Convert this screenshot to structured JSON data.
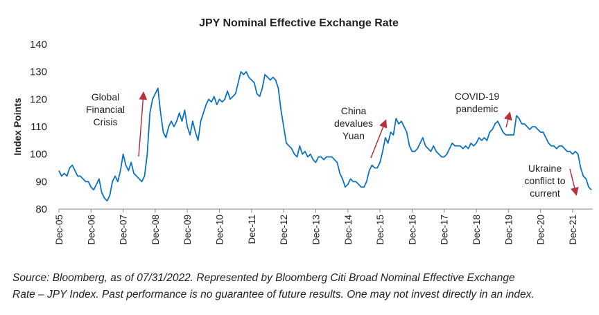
{
  "chart_data": {
    "type": "line",
    "title": "JPY Nominal Effective Exchange Rate",
    "y_label": "Index Points",
    "x": [
      "Dec-05",
      "Jan-06",
      "Feb-06",
      "Mar-06",
      "Apr-06",
      "May-06",
      "Jun-06",
      "Jul-06",
      "Aug-06",
      "Sep-06",
      "Oct-06",
      "Nov-06",
      "Dec-06",
      "Jan-07",
      "Feb-07",
      "Mar-07",
      "Apr-07",
      "May-07",
      "Jun-07",
      "Jul-07",
      "Aug-07",
      "Sep-07",
      "Oct-07",
      "Nov-07",
      "Dec-07",
      "Jan-08",
      "Feb-08",
      "Mar-08",
      "Apr-08",
      "May-08",
      "Jun-08",
      "Jul-08",
      "Aug-08",
      "Sep-08",
      "Oct-08",
      "Nov-08",
      "Dec-08",
      "Jan-09",
      "Feb-09",
      "Mar-09",
      "Apr-09",
      "May-09",
      "Jun-09",
      "Jul-09",
      "Aug-09",
      "Sep-09",
      "Oct-09",
      "Nov-09",
      "Dec-09",
      "Jan-10",
      "Feb-10",
      "Mar-10",
      "Apr-10",
      "May-10",
      "Jun-10",
      "Jul-10",
      "Aug-10",
      "Sep-10",
      "Oct-10",
      "Nov-10",
      "Dec-10",
      "Jan-11",
      "Feb-11",
      "Mar-11",
      "Apr-11",
      "May-11",
      "Jun-11",
      "Jul-11",
      "Aug-11",
      "Sep-11",
      "Oct-11",
      "Nov-11",
      "Dec-11",
      "Jan-12",
      "Feb-12",
      "Mar-12",
      "Apr-12",
      "May-12",
      "Jun-12",
      "Jul-12",
      "Aug-12",
      "Sep-12",
      "Oct-12",
      "Nov-12",
      "Dec-12",
      "Jan-13",
      "Feb-13",
      "Mar-13",
      "Apr-13",
      "May-13",
      "Jun-13",
      "Jul-13",
      "Aug-13",
      "Sep-13",
      "Oct-13",
      "Nov-13",
      "Dec-13",
      "Jan-14",
      "Feb-14",
      "Mar-14",
      "Apr-14",
      "May-14",
      "Jun-14",
      "Jul-14",
      "Aug-14",
      "Sep-14",
      "Oct-14",
      "Nov-14",
      "Dec-14",
      "Jan-15",
      "Feb-15",
      "Mar-15",
      "Apr-15",
      "May-15",
      "Jun-15",
      "Jul-15",
      "Aug-15",
      "Sep-15",
      "Oct-15",
      "Nov-15",
      "Dec-15",
      "Jan-16",
      "Feb-16",
      "Mar-16",
      "Apr-16",
      "May-16",
      "Jun-16",
      "Jul-16",
      "Aug-16",
      "Sep-16",
      "Oct-16",
      "Nov-16",
      "Dec-16",
      "Jan-17",
      "Feb-17",
      "Mar-17",
      "Apr-17",
      "May-17",
      "Jun-17",
      "Jul-17",
      "Aug-17",
      "Sep-17",
      "Oct-17",
      "Nov-17",
      "Dec-17",
      "Jan-18",
      "Feb-18",
      "Mar-18",
      "Apr-18",
      "May-18",
      "Jun-18",
      "Jul-18",
      "Aug-18",
      "Sep-18",
      "Oct-18",
      "Nov-18",
      "Dec-18",
      "Jan-19",
      "Feb-19",
      "Mar-19",
      "Apr-19",
      "May-19",
      "Jun-19",
      "Jul-19",
      "Aug-19",
      "Sep-19",
      "Oct-19",
      "Nov-19",
      "Dec-19",
      "Jan-20",
      "Feb-20",
      "Mar-20",
      "Apr-20",
      "May-20",
      "Jun-20",
      "Jul-20",
      "Aug-20",
      "Sep-20",
      "Oct-20",
      "Nov-20",
      "Dec-20",
      "Jan-21",
      "Feb-21",
      "Mar-21",
      "Apr-21",
      "May-21",
      "Jun-21",
      "Jul-21",
      "Aug-21",
      "Sep-21",
      "Oct-21",
      "Nov-21",
      "Dec-21",
      "Jan-22",
      "Feb-22",
      "Mar-22",
      "Apr-22",
      "May-22",
      "Jun-22",
      "Jul-22"
    ],
    "series": [
      {
        "name": "JPY NEER",
        "color": "#0a72c2",
        "values": [
          94,
          92,
          93,
          92,
          95,
          96,
          94,
          92,
          92,
          91,
          90,
          90,
          88,
          87,
          89,
          91,
          86,
          84,
          83,
          85,
          90,
          92,
          90,
          94,
          100,
          96,
          94,
          97,
          93,
          92,
          91,
          90,
          92,
          100,
          115,
          120,
          122,
          124,
          115,
          108,
          106,
          110,
          112,
          110,
          112,
          115,
          112,
          116,
          110,
          107,
          112,
          108,
          105,
          112,
          115,
          118,
          120,
          119,
          121,
          118,
          120,
          119,
          120,
          123,
          120,
          121,
          122,
          126,
          130,
          129,
          130,
          128,
          127,
          126,
          122,
          121,
          124,
          129,
          128,
          127,
          128,
          127,
          124,
          116,
          110,
          104,
          103,
          102,
          100,
          99,
          103,
          100,
          101,
          99,
          100,
          98,
          97,
          99,
          99,
          98,
          99,
          99,
          99,
          98,
          97,
          93,
          91,
          88,
          89,
          91,
          90,
          90,
          89,
          88,
          88,
          90,
          94,
          96,
          95,
          95,
          97,
          101,
          106,
          104,
          108,
          107,
          113,
          111,
          112,
          110,
          108,
          103,
          101,
          101,
          102,
          104,
          106,
          103,
          102,
          101,
          103,
          101,
          100,
          99,
          99,
          100,
          102,
          104,
          103,
          103,
          103,
          102,
          103,
          102,
          104,
          103,
          104,
          106,
          105,
          106,
          105,
          108,
          109,
          111,
          112,
          110,
          108,
          107,
          107,
          107,
          107,
          114,
          113,
          111,
          111,
          110,
          109,
          110,
          110,
          109,
          108,
          108,
          106,
          104,
          103,
          103,
          102,
          103,
          103,
          102,
          101,
          101,
          100,
          101,
          100,
          95,
          92,
          91,
          88,
          87
        ]
      }
    ],
    "ylim": [
      80,
      140
    ],
    "yticks": [
      80,
      90,
      100,
      110,
      120,
      130,
      140
    ],
    "xticks": [
      "Dec-05",
      "Dec-06",
      "Dec-07",
      "Dec-08",
      "Dec-09",
      "Dec-10",
      "Dec-11",
      "Dec-12",
      "Dec-13",
      "Dec-14",
      "Dec-15",
      "Dec-16",
      "Dec-17",
      "Dec-18",
      "Dec-19",
      "Dec-20",
      "Dec-21"
    ],
    "annotations": [
      {
        "lines": [
          "Global",
          "Financial",
          "Crisis"
        ]
      },
      {
        "lines": [
          "China",
          "devalues",
          "Yuan"
        ]
      },
      {
        "lines": [
          "COVID-19",
          "pandemic"
        ]
      },
      {
        "lines": [
          "Ukraine",
          "conflict to",
          "current"
        ]
      }
    ],
    "source": [
      "Source: Bloomberg, as of 07/31/2022. Represented by Bloomberg Citi Broad Nominal Effective Exchange",
      "Rate – JPY Index. Past performance is no guarantee of future results. One may not invest directly in an index."
    ]
  }
}
